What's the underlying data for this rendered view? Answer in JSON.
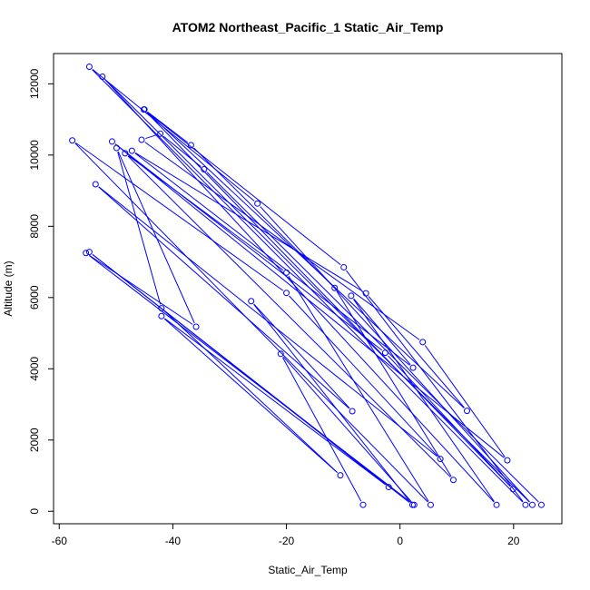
{
  "chart_data": {
    "type": "scatter",
    "title": "ATOM2 Northeast_Pacific_1 Static_Air_Temp",
    "xlabel": "Static_Air_Temp",
    "ylabel": "Altitude (m)",
    "xlim": [
      -61,
      28.5
    ],
    "ylim": [
      -350,
      12850
    ],
    "xticks": [
      -60,
      -40,
      -20,
      0,
      20
    ],
    "xtick_labels": [
      "-60",
      "-40",
      "-20",
      "0",
      "20"
    ],
    "yticks": [
      0,
      2000,
      4000,
      6000,
      8000,
      10000,
      12000
    ],
    "ytick_labels": [
      "0",
      "2000",
      "4000",
      "6000",
      "8000",
      "10000",
      "12000"
    ],
    "connect_points": true,
    "marker": "open-circle",
    "grid": false,
    "legend": "none",
    "colors": {
      "series": "#0000ff",
      "text": "#000000",
      "frame": "#000000"
    },
    "series": [
      {
        "points": [
          {
            "x": 24.9,
            "y": 180
          },
          {
            "x": -34.5,
            "y": 9600
          },
          {
            "x": -42.2,
            "y": 10600
          },
          {
            "x": -45.5,
            "y": 10430
          },
          {
            "x": 4.0,
            "y": 4750
          },
          {
            "x": 18.9,
            "y": 1430
          },
          {
            "x": -50.7,
            "y": 10380
          },
          {
            "x": -2.6,
            "y": 4450
          },
          {
            "x": 19.9,
            "y": 620
          },
          {
            "x": -45.1,
            "y": 11280
          },
          {
            "x": -9.9,
            "y": 6850
          },
          {
            "x": 22.1,
            "y": 180
          },
          {
            "x": -54.7,
            "y": 12480
          },
          {
            "x": -25.1,
            "y": 8640
          },
          {
            "x": 23.3,
            "y": 180
          },
          {
            "x": -52.4,
            "y": 12200
          },
          {
            "x": 17.0,
            "y": 180
          },
          {
            "x": -8.6,
            "y": 6050
          },
          {
            "x": 2.3,
            "y": 4030
          },
          {
            "x": -47.2,
            "y": 10120
          },
          {
            "x": -6.0,
            "y": 6120
          },
          {
            "x": 11.8,
            "y": 2820
          },
          {
            "x": -45.0,
            "y": 11280
          },
          {
            "x": -36.8,
            "y": 10280
          },
          {
            "x": -11.5,
            "y": 6270
          },
          {
            "x": 9.4,
            "y": 880
          },
          {
            "x": -48.4,
            "y": 10050
          },
          {
            "x": -20.0,
            "y": 6700
          },
          {
            "x": 5.4,
            "y": 180
          },
          {
            "x": -57.7,
            "y": 10410
          },
          {
            "x": -20.0,
            "y": 6130
          },
          {
            "x": 7.1,
            "y": 1470
          },
          {
            "x": -53.6,
            "y": 9180
          },
          {
            "x": -8.4,
            "y": 2810
          },
          {
            "x": -26.2,
            "y": 5900
          },
          {
            "x": 2.2,
            "y": 180
          },
          {
            "x": -54.7,
            "y": 7280
          },
          {
            "x": -2.0,
            "y": 680
          },
          {
            "x": -42.0,
            "y": 5480
          },
          {
            "x": -10.5,
            "y": 1010
          },
          {
            "x": -42.0,
            "y": 5700
          },
          {
            "x": -49.9,
            "y": 10200
          },
          {
            "x": -35.9,
            "y": 5180
          },
          {
            "x": -55.3,
            "y": 7250
          },
          {
            "x": 2.5,
            "y": 180
          },
          {
            "x": -21.0,
            "y": 4420
          },
          {
            "x": -6.5,
            "y": 180
          }
        ]
      }
    ]
  }
}
